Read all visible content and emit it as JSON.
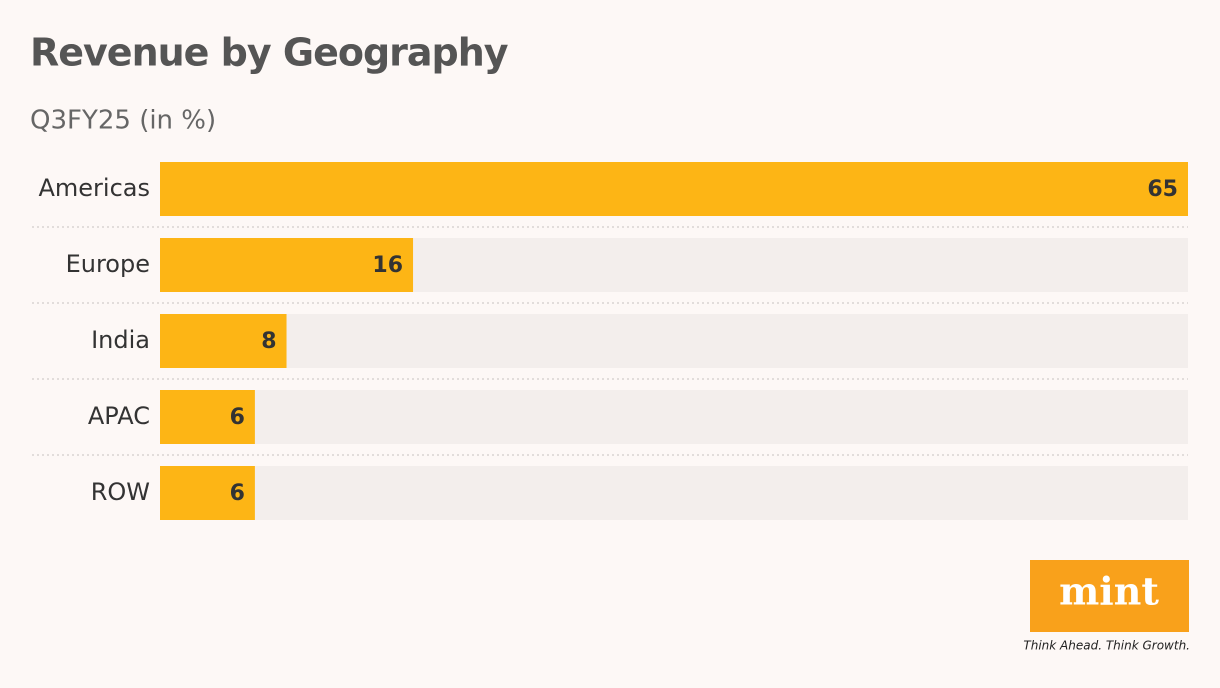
{
  "chart_data": {
    "type": "barh",
    "title": "Revenue by Geography",
    "subtitle": "Q3FY25 (in %)",
    "categories": [
      "Americas",
      "Europe",
      "India",
      "APAC",
      "ROW"
    ],
    "values": [
      65,
      16,
      8,
      6,
      6
    ],
    "color": "#fdb515",
    "xlim": [
      0,
      65
    ]
  },
  "logo": {
    "brand": "mint",
    "tagline": "Think Ahead. Think Growth."
  }
}
